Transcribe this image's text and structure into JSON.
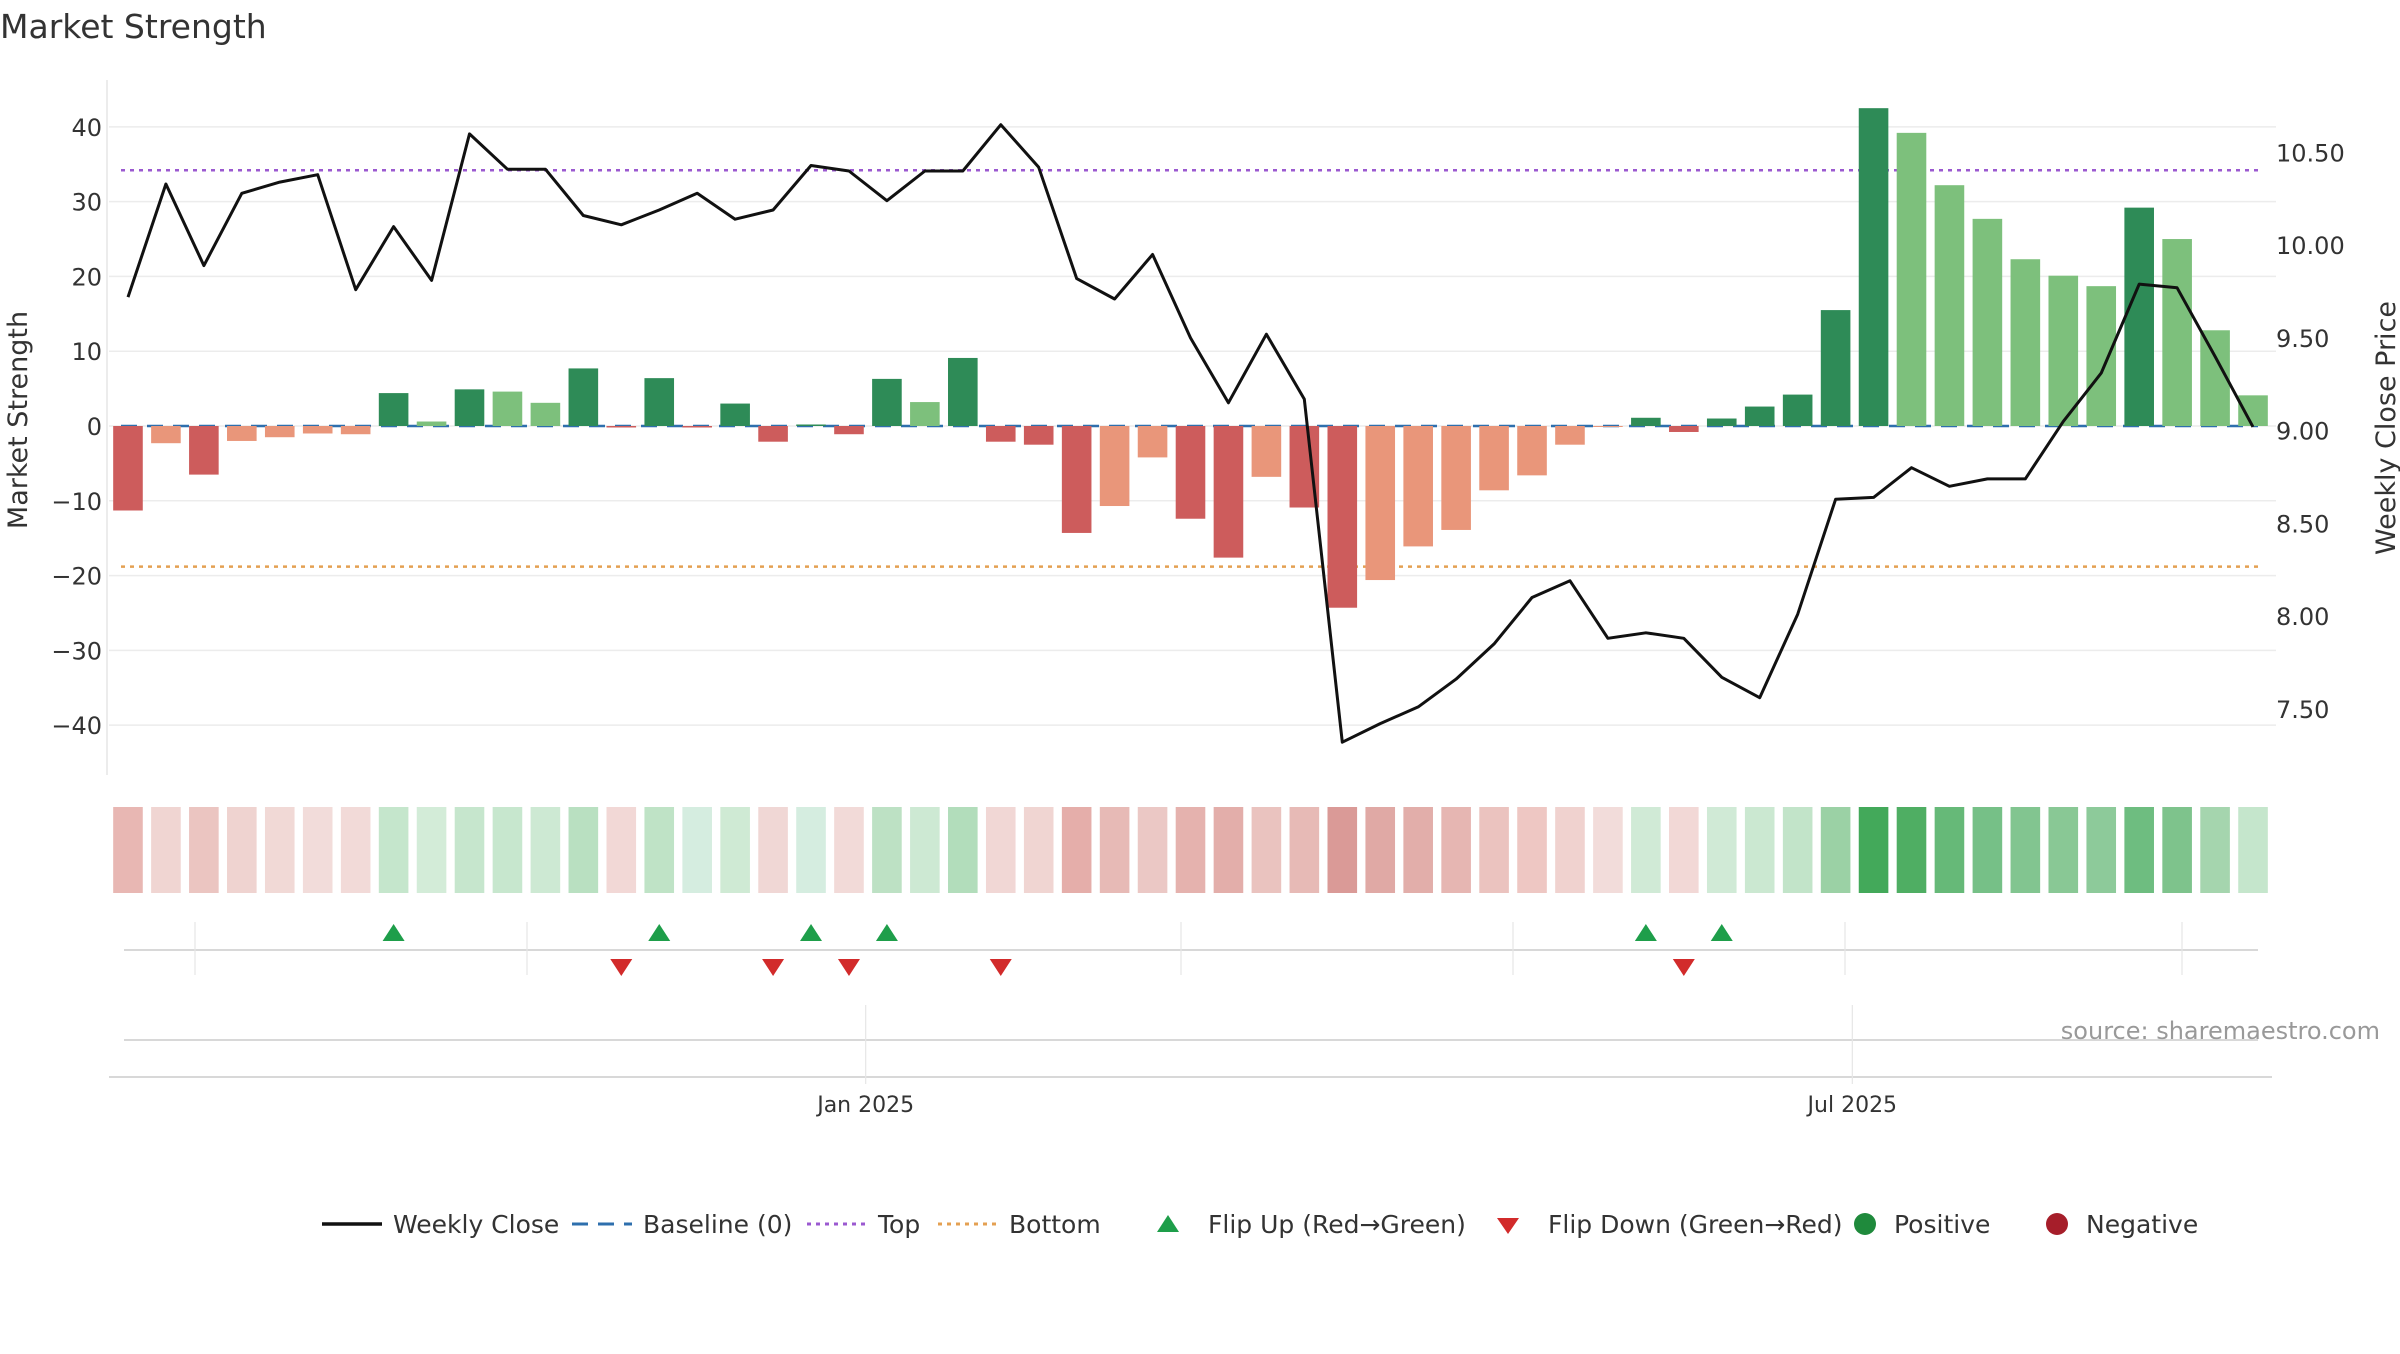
{
  "chart_data": {
    "type": "bar",
    "title": "Market Strength",
    "ylabel": "Market Strength",
    "y2label": "Weekly Close Price",
    "ylim": [
      -46,
      46
    ],
    "y2lim": [
      7.17,
      10.88
    ],
    "yticks": [
      40,
      30,
      20,
      10,
      0,
      -10,
      -20,
      -30,
      -40
    ],
    "ytick_labels": [
      "40",
      "30",
      "20",
      "10",
      "0",
      "−10",
      "−20",
      "−30",
      "−40"
    ],
    "y2ticks": [
      10.5,
      10.0,
      9.5,
      9.0,
      8.5,
      8.0,
      7.5
    ],
    "y2tick_labels": [
      "10.50",
      "10.00",
      "9.50",
      "9.00",
      "8.50",
      "8.00",
      "7.50"
    ],
    "xtick_labels": [
      {
        "label": "Jan 2025",
        "week": 20
      },
      {
        "label": "Jul 2025",
        "week": 46
      }
    ],
    "top_line": 34.2,
    "bottom_line": -18.8,
    "baseline": 0,
    "strength": [
      -11.3,
      -2.3,
      -6.5,
      -2.0,
      -1.5,
      -1.0,
      -1.1,
      4.4,
      0.6,
      4.9,
      4.6,
      3.1,
      7.7,
      -0.2,
      6.4,
      -0.2,
      3.0,
      -2.1,
      0.2,
      -1.1,
      6.3,
      3.2,
      9.1,
      -2.1,
      -2.5,
      -14.3,
      -10.7,
      -4.2,
      -12.4,
      -17.6,
      -6.8,
      -10.9,
      -24.3,
      -20.6,
      -16.1,
      -13.9,
      -8.6,
      -6.6,
      -2.5,
      -0.1,
      1.1,
      -0.8,
      1.0,
      2.6,
      4.2,
      15.5,
      42.5,
      39.2,
      32.2,
      27.7,
      22.3,
      20.1,
      18.7,
      29.2,
      25.0,
      12.8,
      4.1
    ],
    "bar_color_class": [
      "neg",
      "negl",
      "neg",
      "negl",
      "negl",
      "negl",
      "negl",
      "pos",
      "posl",
      "pos",
      "posl",
      "posl",
      "pos",
      "neg",
      "pos",
      "neg",
      "pos",
      "neg",
      "pos",
      "neg",
      "pos",
      "posl",
      "pos",
      "neg",
      "neg",
      "neg",
      "negl",
      "negl",
      "neg",
      "neg",
      "negl",
      "neg",
      "neg",
      "negl",
      "negl",
      "negl",
      "negl",
      "negl",
      "negl",
      "negl",
      "pos",
      "neg",
      "pos",
      "pos",
      "pos",
      "pos",
      "pos",
      "posl",
      "posl",
      "posl",
      "posl",
      "posl",
      "posl",
      "pos",
      "posl",
      "posl",
      "posl"
    ],
    "weekly_close": [
      9.72,
      10.33,
      9.89,
      10.28,
      10.34,
      10.38,
      9.76,
      10.1,
      9.81,
      10.6,
      10.41,
      10.41,
      10.16,
      10.11,
      10.19,
      10.28,
      10.14,
      10.19,
      10.43,
      10.4,
      10.24,
      10.4,
      10.4,
      10.65,
      10.42,
      9.82,
      9.71,
      9.95,
      9.5,
      9.15,
      9.52,
      9.17,
      7.32,
      7.42,
      7.51,
      7.66,
      7.85,
      8.1,
      8.19,
      7.88,
      7.91,
      7.88,
      7.67,
      7.56,
      8.01,
      8.63,
      8.64,
      8.8,
      8.7,
      8.74,
      8.74,
      9.05,
      9.31,
      9.79,
      9.77,
      9.4,
      9.02
    ],
    "heat_strip": [
      "#e8b7b3",
      "#f0d5d2",
      "#ebc5c1",
      "#efd3d0",
      "#f1d9d6",
      "#f2dcda",
      "#f2dad8",
      "#c5e6cc",
      "#d3ecd8",
      "#c6e6cd",
      "#c7e7ce",
      "#cde9d3",
      "#b9e0c1",
      "#f2d8d6",
      "#bfe3c6",
      "#d5ede0",
      "#cfead4",
      "#f0d7d5",
      "#d5ede0",
      "#f2dad8",
      "#bde1c4",
      "#cde9d3",
      "#b2ddbb",
      "#f1d7d5",
      "#f0d5d2",
      "#e5aeaa",
      "#e7bab6",
      "#ebc8c5",
      "#e5b2ae",
      "#e3aeaa",
      "#eac3bf",
      "#e7bab6",
      "#da9a97",
      "#e0a9a5",
      "#e2aeaa",
      "#e6b6b2",
      "#ebc3bf",
      "#eec7c3",
      "#f0d2cf",
      "#f2dcda",
      "#d0ead6",
      "#f2d8d6",
      "#d0ead6",
      "#cbe8d1",
      "#c2e4c9",
      "#9bd1a5",
      "#43a95a",
      "#4fae63",
      "#66b978",
      "#76c087",
      "#82c590",
      "#89c895",
      "#8dca9a",
      "#6ebd80",
      "#7ec38c",
      "#a5d5ae",
      "#c5e6cc"
    ],
    "flips": [
      {
        "week": 7,
        "type": "up"
      },
      {
        "week": 13,
        "type": "down"
      },
      {
        "week": 14,
        "type": "up"
      },
      {
        "week": 17,
        "type": "down"
      },
      {
        "week": 18,
        "type": "up"
      },
      {
        "week": 19,
        "type": "down"
      },
      {
        "week": 20,
        "type": "up"
      },
      {
        "week": 23,
        "type": "down"
      },
      {
        "week": 40,
        "type": "up"
      },
      {
        "week": 41,
        "type": "down"
      },
      {
        "week": 42,
        "type": "up"
      }
    ],
    "legend": [
      {
        "label": "Weekly Close",
        "symbol": "line",
        "color": "#111111"
      },
      {
        "label": "Baseline (0)",
        "symbol": "dash",
        "color": "#2e6fad"
      },
      {
        "label": "Top",
        "symbol": "dot",
        "color": "#9b59d0"
      },
      {
        "label": "Bottom",
        "symbol": "dot",
        "color": "#e4a052"
      },
      {
        "label": "Flip Up (Red→Green)",
        "symbol": "tri-up",
        "color": "#1e9e4a"
      },
      {
        "label": "Flip Down (Green→Red)",
        "symbol": "tri-down",
        "color": "#d22b2b"
      },
      {
        "label": "Positive",
        "symbol": "circle",
        "color": "#1f8a3c"
      },
      {
        "label": "Negative",
        "symbol": "circle",
        "color": "#a61e2a"
      }
    ],
    "source": "source: sharemaestro.com"
  },
  "colors": {
    "pos": "#2e8b57",
    "posl": "#7dc07c",
    "neg": "#cd5c5c",
    "negl": "#e9967a",
    "grid": "#ececec",
    "axis": "#cccccc",
    "text": "#333333"
  }
}
